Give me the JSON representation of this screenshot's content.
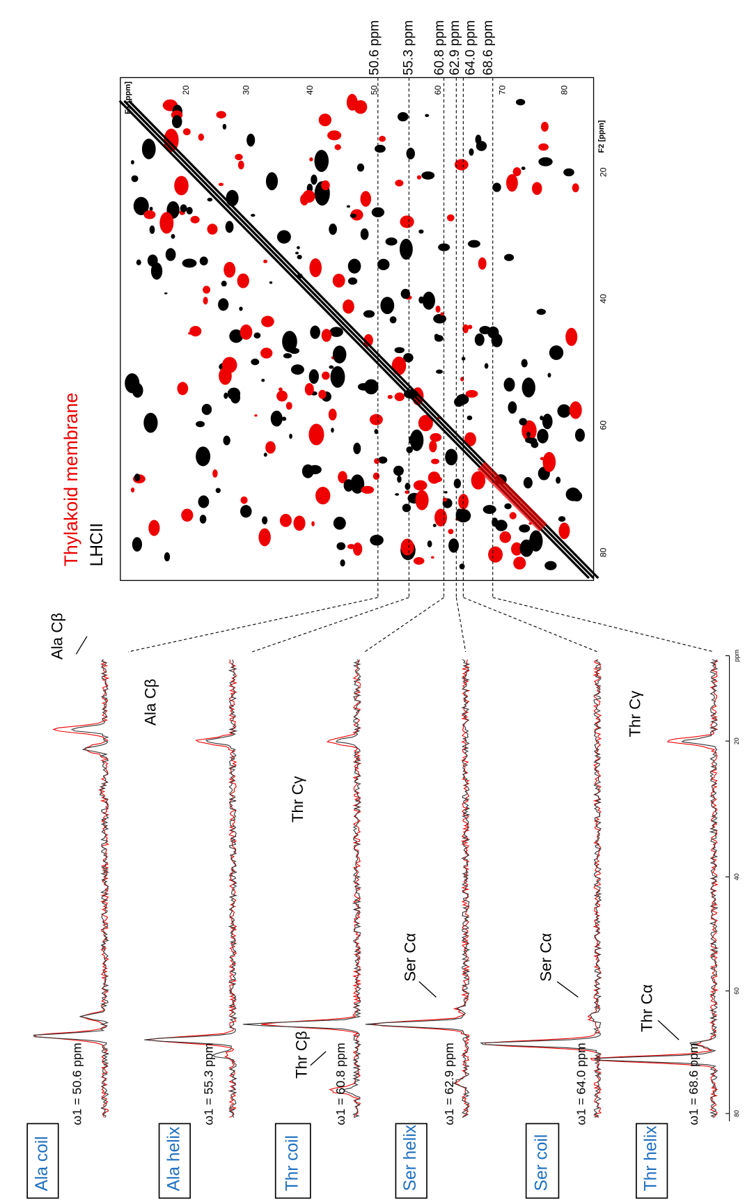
{
  "legend": [
    "Thylakoid membrane",
    "LHCII"
  ],
  "slices": [
    "50.6 ppm",
    "55.3 ppm",
    "60.8 ppm",
    "62.9 ppm",
    "64.0 ppm",
    "68.6 ppm"
  ],
  "spectrum": {
    "f1_label": "F1 [ppm]",
    "f2_label": "F2 [ppm]",
    "f1_ticks": [
      "20",
      "30",
      "40",
      "50",
      "60",
      "70",
      "80"
    ],
    "f2_ticks": [
      "20",
      "40",
      "60",
      "80"
    ]
  },
  "traces": [
    {
      "name": "Ala coil",
      "shift": "ω1 = 50.6 ppm",
      "peaks": [
        "Ala Cβ"
      ]
    },
    {
      "name": "Ala helix",
      "shift": "ω1 = 55.3 ppm",
      "peaks": [
        "Ala Cβ"
      ]
    },
    {
      "name": "Thr coil",
      "shift": "ω1 = 60.8 ppm",
      "peaks": [
        "Thr Cγ",
        "Thr Cβ"
      ]
    },
    {
      "name": "Ser helix",
      "shift": "ω1 = 62.9 ppm",
      "peaks": [
        "Ser Cα"
      ]
    },
    {
      "name": "Ser coil",
      "shift": "ω1 = 64.0 ppm",
      "peaks": [
        "Ser Cα"
      ]
    },
    {
      "name": "Thr helix",
      "shift": "ω1 = 68.6 ppm",
      "peaks": [
        "Thr Cγ",
        "Thr Cα"
      ]
    }
  ],
  "axis_ticks": [
    "80",
    "60",
    "40",
    "20",
    "ppm"
  ]
}
